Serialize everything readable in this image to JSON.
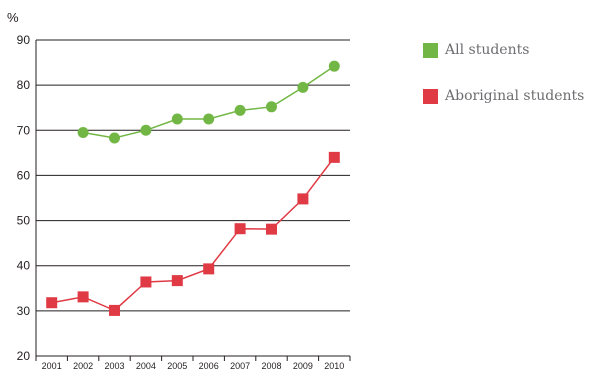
{
  "chart_data": {
    "type": "line",
    "unit_label": "%",
    "x": [
      "2001",
      "2002",
      "2003",
      "2004",
      "2005",
      "2006",
      "2007",
      "2008",
      "2009",
      "2010"
    ],
    "ylim": [
      20,
      90
    ],
    "yticks": [
      20,
      30,
      40,
      50,
      60,
      70,
      80,
      90
    ],
    "grid": true,
    "legend_position": "top-right",
    "series": [
      {
        "name": "All students",
        "marker": "circle",
        "color": "#72b745",
        "values": [
          null,
          69.5,
          68.3,
          70,
          72.5,
          72.5,
          74.4,
          75.2,
          79.5,
          84.2
        ]
      },
      {
        "name": "Aboriginal students",
        "marker": "square",
        "color": "#e03a44",
        "values": [
          31.8,
          33.1,
          30.1,
          36.4,
          36.7,
          39.3,
          48.2,
          48.1,
          54.8,
          64
        ]
      }
    ]
  }
}
